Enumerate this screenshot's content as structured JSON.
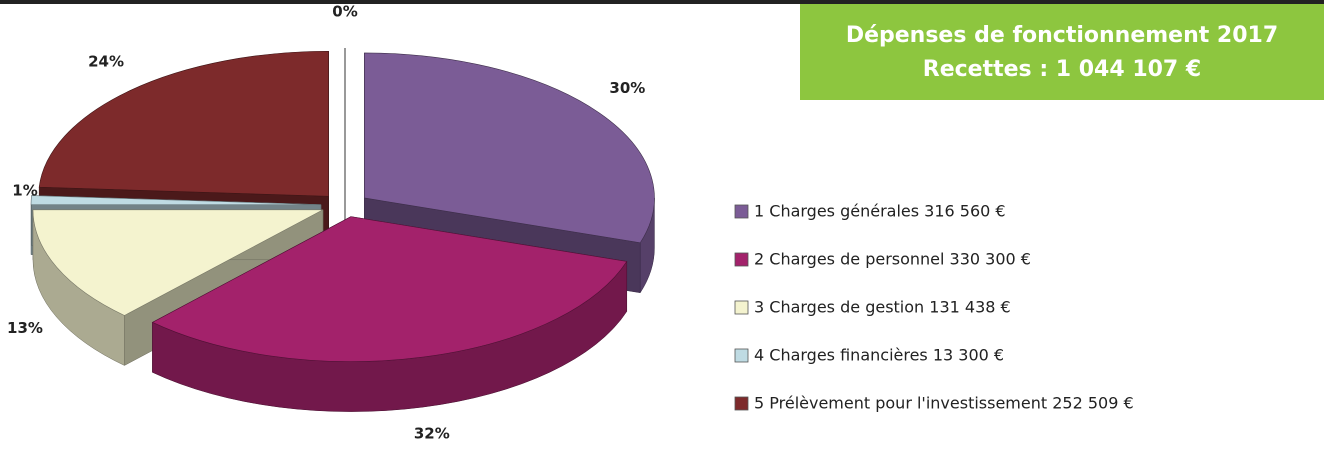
{
  "chart_data": {
    "type": "pie3d",
    "title": "Dépenses de fonctionnement 2017",
    "subtitle": "Recettes : 1 044 107 €",
    "categories": [
      "1 Charges générales 316 560 €",
      "2 Charges de personnel 330 300 €",
      "3 Charges de gestion 131 438 €",
      "4 Charges financières 13 300 €",
      "5  Prélèvement pour l'investissement 252 509 €",
      null
    ],
    "values": [
      30,
      32,
      13,
      1,
      24,
      0
    ],
    "value_labels": [
      "30%",
      "32%",
      "13%",
      "1%",
      "24%",
      "0%"
    ],
    "colors": [
      "#7b5c96",
      "#a3226b",
      "#f4f3cf",
      "#bfdbe3",
      "#7d2a2b",
      "#999999"
    ],
    "title_box_color": "#8dc63f"
  }
}
